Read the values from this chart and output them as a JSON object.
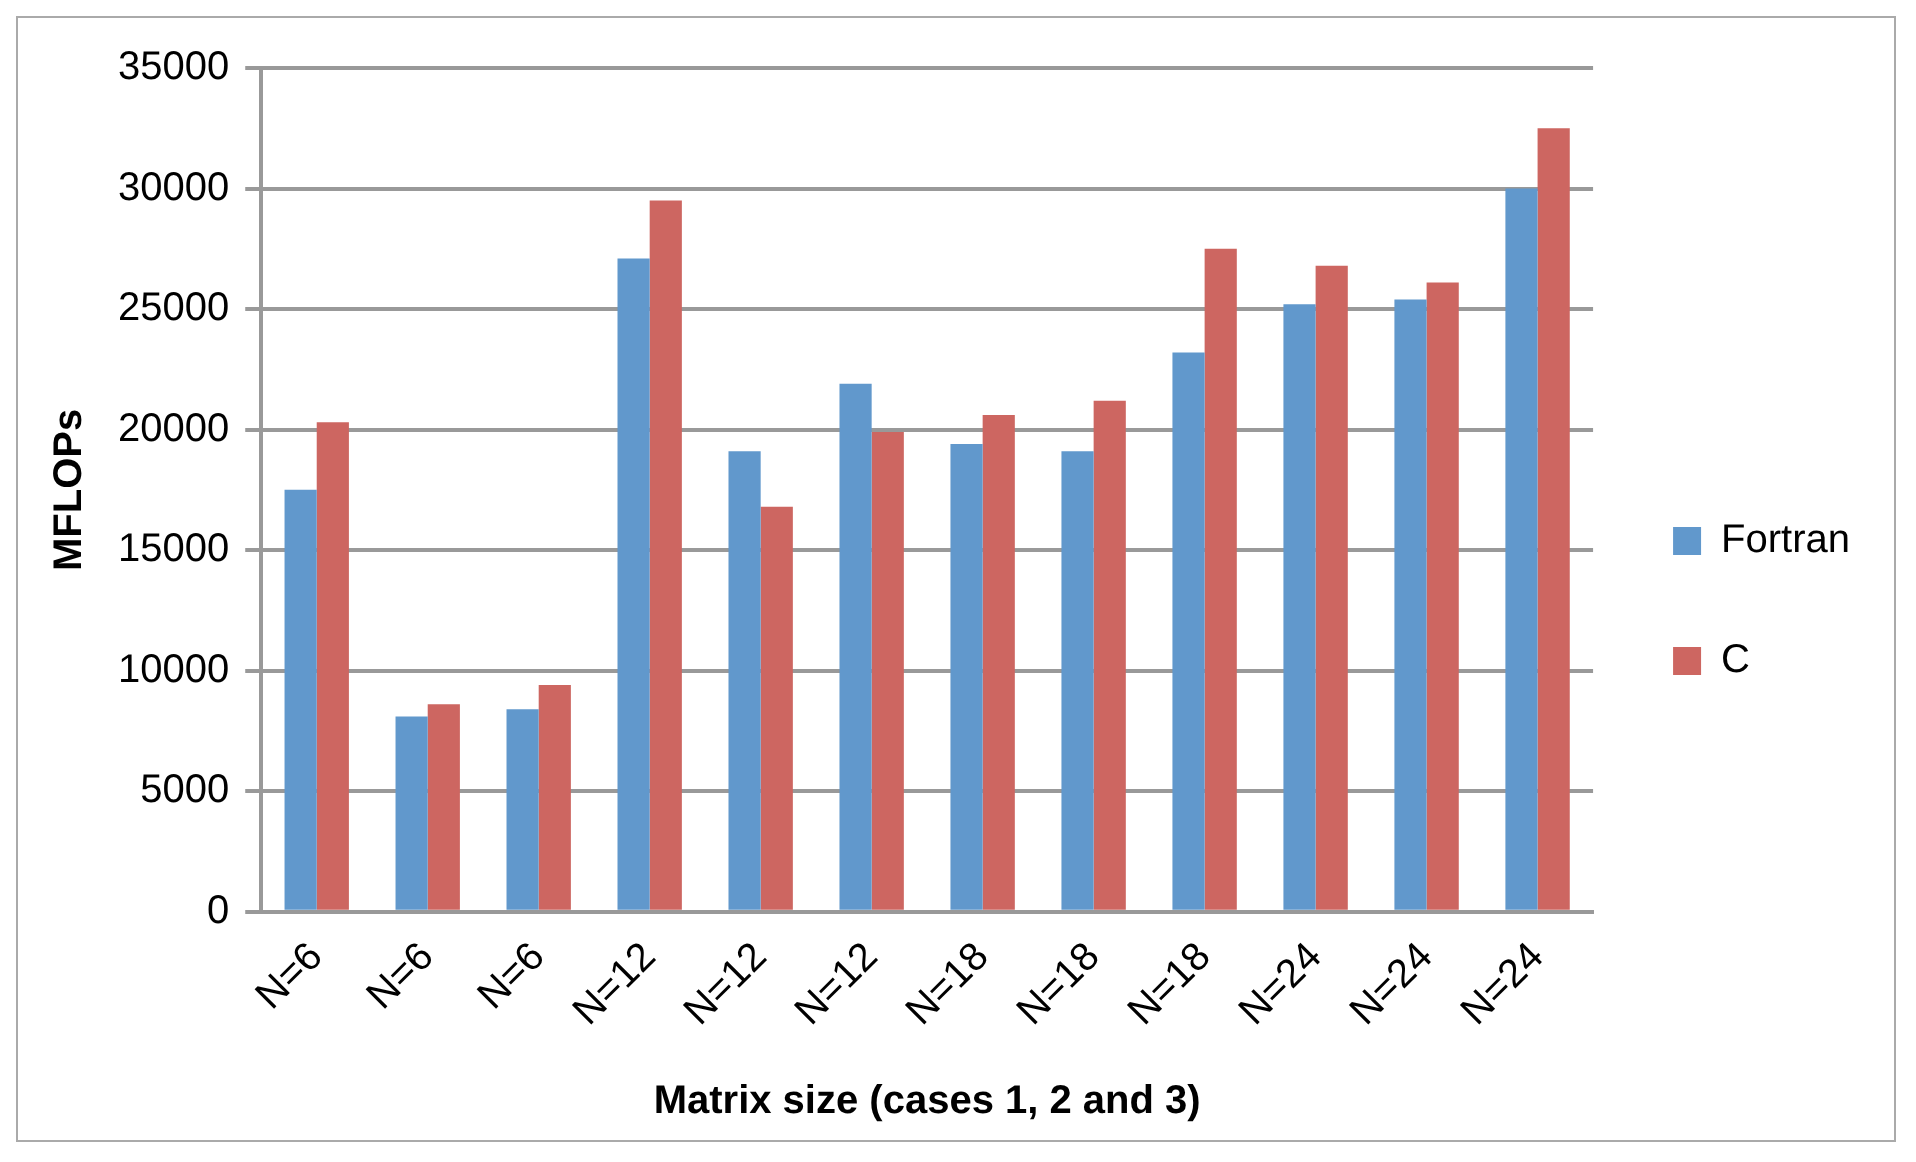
{
  "chart_data": {
    "type": "bar",
    "xlabel": "Matrix size (cases 1, 2 and 3)",
    "ylabel": "MFLOPs",
    "categories": [
      "N=6",
      "N=6",
      "N=6",
      "N=12",
      "N=12",
      "N=12",
      "N=18",
      "N=18",
      "N=18",
      "N=24",
      "N=24",
      "N=24"
    ],
    "series": [
      {
        "name": "Fortran",
        "color": "#6198cc",
        "values": [
          17500,
          8100,
          8400,
          27100,
          19100,
          21900,
          19400,
          19100,
          23200,
          25200,
          25400,
          30000
        ]
      },
      {
        "name": "C",
        "color": "#cd6661",
        "values": [
          20300,
          8600,
          9400,
          29500,
          16800,
          19900,
          20600,
          21200,
          27500,
          26800,
          26100,
          32500
        ]
      }
    ],
    "ylim": [
      0,
      35000
    ],
    "yticks": [
      0,
      5000,
      10000,
      15000,
      20000,
      25000,
      30000,
      35000
    ],
    "grid": "y",
    "legend": "right"
  }
}
